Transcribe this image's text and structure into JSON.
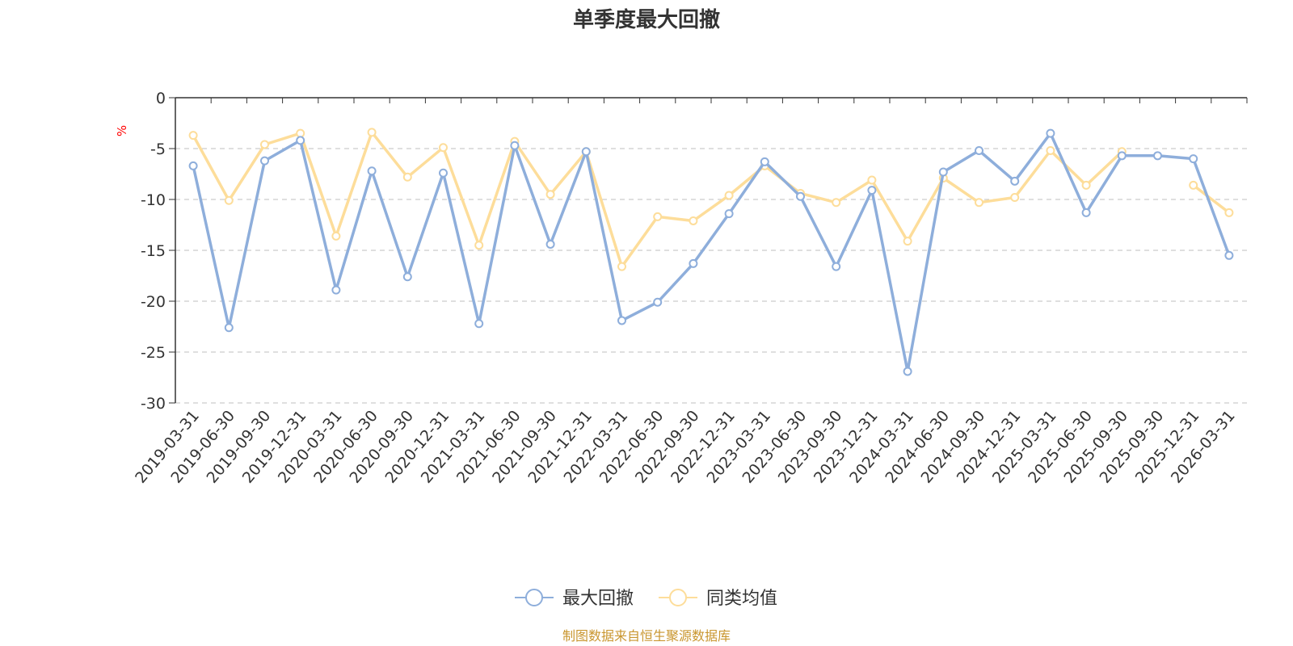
{
  "chart_data": {
    "type": "line",
    "title": "单季度最大回撤",
    "ylabel": "%",
    "ylim": [
      -30,
      0
    ],
    "yticks": [
      0,
      -5,
      -10,
      -15,
      -20,
      -25,
      -30
    ],
    "grid": true,
    "legend_position": "bottom-center",
    "categories": [
      "2019-03-31",
      "2019-06-30",
      "2019-09-30",
      "2019-12-31",
      "2020-03-31",
      "2020-06-30",
      "2020-09-30",
      "2020-12-31",
      "2021-03-31",
      "2021-06-30",
      "2021-09-30",
      "2021-12-31",
      "2022-03-31",
      "2022-06-30",
      "2022-09-30",
      "2022-12-31",
      "2023-03-31",
      "2023-06-30",
      "2023-09-30",
      "2023-12-31",
      "2024-03-31",
      "2024-06-30",
      "2024-09-30",
      "2024-12-31",
      "2025-03-31",
      "2025-06-30",
      "2025-09-30",
      "2025-09-30",
      "2025-12-31",
      "2026-03-31"
    ],
    "series": [
      {
        "name": "最大回撤",
        "color": "#8eaedb",
        "values": [
          -6.7,
          -22.6,
          -6.2,
          -4.2,
          -18.9,
          -7.2,
          -17.6,
          -7.4,
          -22.2,
          -4.7,
          -14.4,
          -5.3,
          -21.9,
          -20.1,
          -16.3,
          -11.4,
          -6.3,
          -9.7,
          -16.6,
          -9.1,
          -26.9,
          -7.3,
          -5.2,
          -8.2,
          -3.5,
          -11.3,
          -5.7,
          -5.7,
          -6.0,
          -15.5
        ]
      },
      {
        "name": "同类均值",
        "color": "#fddd9a",
        "values": [
          -3.7,
          -10.1,
          -4.6,
          -3.5,
          -13.6,
          -3.4,
          -7.8,
          -4.9,
          -14.5,
          -4.3,
          -9.5,
          -5.3,
          -16.6,
          -11.7,
          -12.1,
          -9.6,
          -6.7,
          -9.4,
          -10.3,
          -8.1,
          -14.1,
          -7.9,
          -10.3,
          -9.8,
          -5.2,
          -8.6,
          -5.3,
          null,
          -8.6,
          -11.3
        ]
      }
    ]
  },
  "source": {
    "text": "制图数据来自恒生聚源数据库",
    "color": "#c9962f"
  },
  "colors": {
    "axis": "#333333",
    "grid": "#cccccc",
    "unit": "#ff0000"
  }
}
